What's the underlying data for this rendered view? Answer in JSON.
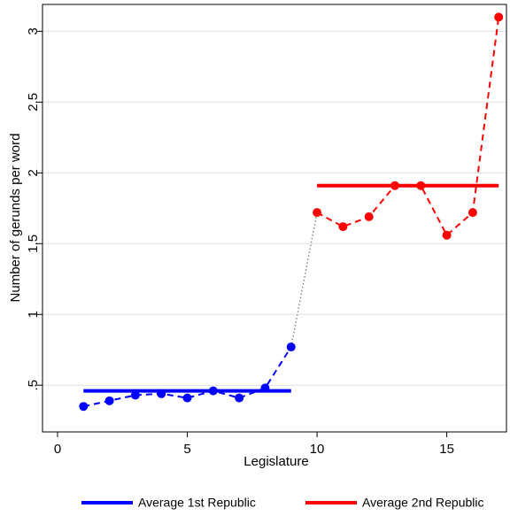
{
  "chart_data": {
    "type": "line",
    "xlabel": "Legislature",
    "ylabel": "Number of gerunds per word",
    "xlim": [
      -0.58,
      17.3
    ],
    "xticks": [
      0,
      5,
      10,
      15
    ],
    "ylim": [
      0.17,
      3.19
    ],
    "yticks": [
      {
        "value": 0.5,
        "label": ".5"
      },
      1,
      1.5,
      2,
      2.5,
      3
    ],
    "grid": true,
    "legend": "bottom",
    "connector_color": "#888888",
    "series": [
      {
        "name": "Average 1st Republic",
        "color": "#0000ff",
        "x": [
          1,
          2,
          3,
          4,
          5,
          6,
          7,
          8,
          9
        ],
        "values": [
          0.35,
          0.39,
          0.43,
          0.44,
          0.41,
          0.46,
          0.41,
          0.48,
          0.77
        ],
        "average": 0.46
      },
      {
        "name": "Average 2nd Republic",
        "color": "#ff0000",
        "x": [
          10,
          11,
          12,
          13,
          14,
          15,
          16,
          17
        ],
        "values": [
          1.72,
          1.62,
          1.69,
          1.91,
          1.91,
          1.56,
          1.72,
          3.1
        ],
        "average": 1.91
      }
    ]
  }
}
